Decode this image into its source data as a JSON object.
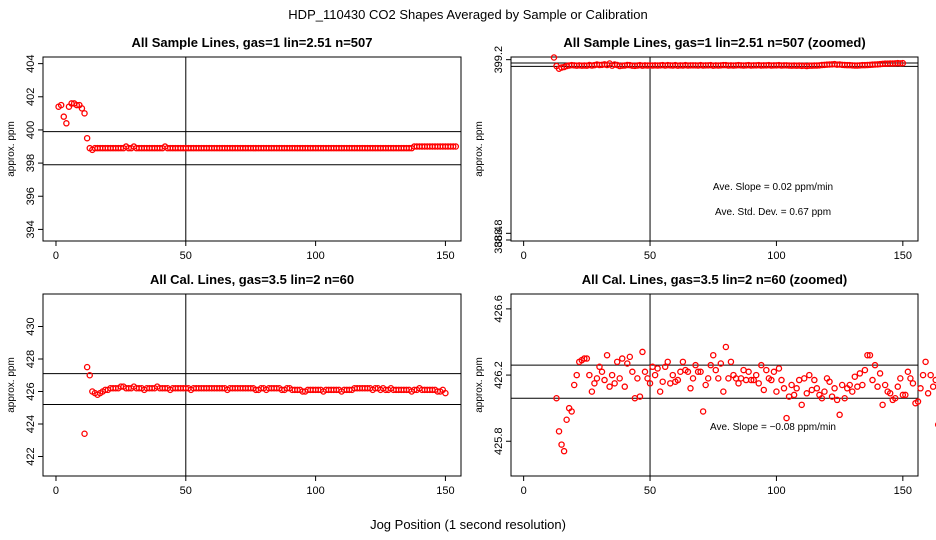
{
  "figure": {
    "title": "HDP_110430  CO2 Shapes Averaged by Sample or Calibration",
    "xlabel": "Jog Position (1 second resolution)"
  },
  "colors": {
    "points": "#ff0000",
    "axes": "#000000",
    "background": "#ffffff"
  },
  "chart_data": [
    {
      "type": "scatter",
      "title": "All Sample Lines, gas=1 lin=2.51 n=507",
      "ylabel": "approx. ppm",
      "xlim": [
        -5,
        156
      ],
      "ylim": [
        393.3,
        404.4
      ],
      "xticks": [
        0,
        50,
        100,
        150
      ],
      "yticks": [
        394,
        396,
        398,
        400,
        402,
        404
      ],
      "vline": 50,
      "hlines": [
        399.9,
        397.9
      ],
      "annotations": [],
      "series": [
        {
          "x_start": 1,
          "values": [
            401.4,
            401.5,
            400.8,
            400.4,
            401.4,
            401.6,
            401.6,
            401.5,
            401.5,
            401.3,
            401.0,
            399.5,
            398.9,
            398.8,
            398.9,
            398.9,
            398.9,
            398.9,
            398.9,
            398.9,
            398.9,
            398.9,
            398.9,
            398.9,
            398.9,
            398.9,
            399.0,
            398.9,
            398.9,
            399.0,
            398.9,
            398.9,
            398.9,
            398.9,
            398.9,
            398.9,
            398.9,
            398.9,
            398.9,
            398.9,
            398.9,
            399.0,
            398.9,
            398.9,
            398.9,
            398.9,
            398.9,
            398.9,
            398.9,
            398.9,
            398.9,
            398.9,
            398.9,
            398.9,
            398.9,
            398.9,
            398.9,
            398.9,
            398.9,
            398.9,
            398.9,
            398.9,
            398.9,
            398.9,
            398.9,
            398.9,
            398.9,
            398.9,
            398.9,
            398.9,
            398.9,
            398.9,
            398.9,
            398.9,
            398.9,
            398.9,
            398.9,
            398.9,
            398.9,
            398.9,
            398.9,
            398.9,
            398.9,
            398.9,
            398.9,
            398.9,
            398.9,
            398.9,
            398.9,
            398.9,
            398.9,
            398.9,
            398.9,
            398.9,
            398.9,
            398.9,
            398.9,
            398.9,
            398.9,
            398.9,
            398.9,
            398.9,
            398.9,
            398.9,
            398.9,
            398.9,
            398.9,
            398.9,
            398.9,
            398.9,
            398.9,
            398.9,
            398.9,
            398.9,
            398.9,
            398.9,
            398.9,
            398.9,
            398.9,
            398.9,
            398.9,
            398.9,
            398.9,
            398.9,
            398.9,
            398.9,
            398.9,
            398.9,
            398.9,
            398.9,
            398.9,
            398.9,
            398.9,
            398.9,
            398.9,
            398.9,
            398.9,
            399.0,
            399.0,
            399.0,
            399.0,
            399.0,
            399.0,
            399.0,
            399.0,
            399.0,
            399.0,
            399.0,
            399.0,
            399.0,
            399.0,
            399.0,
            399.0,
            399.0
          ]
        }
      ]
    },
    {
      "type": "scatter",
      "title": "All Sample Lines, gas=1 lin=2.51 n=507 (zoomed)",
      "ylabel": "approx. ppm",
      "xlim": [
        -5,
        156
      ],
      "ylim": [
        388.34,
        399.36
      ],
      "xticks": [
        0,
        50,
        100,
        150
      ],
      "yticks": [
        388.4,
        388.8,
        399.2
      ],
      "ytick_labels": [
        "388.4",
        "388.8",
        "399.2"
      ],
      "vline": 50,
      "hlines": [
        399.0,
        398.8
      ],
      "annotations": [
        "Ave. Slope =  0.02  ppm/min",
        "Ave. Std. Dev. =  0.67  ppm"
      ],
      "series": [
        {
          "x_start": 12,
          "values": [
            399.33,
            398.82,
            398.66,
            398.73,
            398.76,
            398.82,
            398.85,
            398.87,
            398.86,
            398.84,
            398.86,
            398.84,
            398.85,
            398.84,
            398.88,
            398.85,
            398.87,
            398.91,
            398.88,
            398.89,
            398.92,
            398.88,
            398.97,
            398.84,
            398.91,
            398.88,
            398.82,
            398.84,
            398.85,
            398.88,
            398.87,
            398.84,
            398.83,
            398.85,
            398.87,
            398.84,
            398.86,
            398.85,
            398.86,
            398.85,
            398.86,
            398.85,
            398.86,
            398.87,
            398.85,
            398.87,
            398.86,
            398.85,
            398.87,
            398.84,
            398.86,
            398.85,
            398.87,
            398.85,
            398.86,
            398.86,
            398.86,
            398.85,
            398.87,
            398.85,
            398.86,
            398.86,
            398.87,
            398.84,
            398.86,
            398.85,
            398.86,
            398.87,
            398.87,
            398.85,
            398.86,
            398.85,
            398.86,
            398.87,
            398.86,
            398.85,
            398.86,
            398.87,
            398.85,
            398.86,
            398.86,
            398.87,
            398.85,
            398.86,
            398.86,
            398.87,
            398.85,
            398.86,
            398.86,
            398.87,
            398.85,
            398.86,
            398.86,
            398.85,
            398.84,
            398.85,
            398.84,
            398.85,
            398.83,
            398.84,
            398.82,
            398.84,
            398.84,
            398.85,
            398.85,
            398.86,
            398.88,
            398.89,
            398.9,
            398.91,
            398.92,
            398.93,
            398.9,
            398.91,
            398.89,
            398.88,
            398.87,
            398.87,
            398.86,
            398.85,
            398.85,
            398.86,
            398.87,
            398.87,
            398.88,
            398.89,
            398.9,
            398.91,
            398.92,
            398.93,
            398.95,
            398.96,
            398.96,
            398.97,
            398.97,
            398.98,
            398.99,
            398.98,
            398.99
          ]
        }
      ]
    },
    {
      "type": "scatter",
      "title": "All Cal. Lines, gas=3.5 lin=2 n=60",
      "ylabel": "approx. ppm",
      "xlim": [
        -5,
        156
      ],
      "ylim": [
        420.8,
        432.0
      ],
      "xticks": [
        0,
        50,
        100,
        150
      ],
      "yticks": [
        422,
        424,
        426,
        428,
        430
      ],
      "vline": 50,
      "hlines": [
        427.1,
        425.2
      ],
      "annotations": [],
      "series": [
        {
          "x_start": 11,
          "values": [
            423.4,
            427.5,
            427.0,
            426.0,
            425.9,
            425.8,
            425.9,
            426.0,
            426.1,
            426.1,
            426.2,
            426.2,
            426.2,
            426.2,
            426.3,
            426.3,
            426.2,
            426.2,
            426.2,
            426.3,
            426.2,
            426.2,
            426.2,
            426.1,
            426.2,
            426.2,
            426.2,
            426.2,
            426.3,
            426.2,
            426.2,
            426.2,
            426.2,
            426.1,
            426.2,
            426.2,
            426.2,
            426.2,
            426.2,
            426.2,
            426.2,
            426.1,
            426.2,
            426.2,
            426.2,
            426.2,
            426.2,
            426.2,
            426.2,
            426.2,
            426.2,
            426.2,
            426.2,
            426.2,
            426.2,
            426.1,
            426.2,
            426.2,
            426.2,
            426.2,
            426.2,
            426.2,
            426.2,
            426.2,
            426.2,
            426.2,
            426.1,
            426.1,
            426.2,
            426.2,
            426.1,
            426.2,
            426.2,
            426.2,
            426.2,
            426.2,
            426.1,
            426.1,
            426.2,
            426.2,
            426.1,
            426.1,
            426.1,
            426.1,
            426.0,
            426.0,
            426.1,
            426.1,
            426.1,
            426.1,
            426.1,
            426.1,
            426.0,
            426.1,
            426.1,
            426.1,
            426.1,
            426.1,
            426.1,
            426.0,
            426.1,
            426.1,
            426.1,
            426.1,
            426.2,
            426.2,
            426.2,
            426.2,
            426.2,
            426.2,
            426.2,
            426.1,
            426.2,
            426.2,
            426.1,
            426.2,
            426.1,
            426.1,
            426.2,
            426.1,
            426.1,
            426.1,
            426.1,
            426.1,
            426.1,
            426.1,
            426.0,
            426.1,
            426.1,
            426.2,
            426.1,
            426.1,
            426.1,
            426.1,
            426.1,
            426.1,
            426.0,
            426.0,
            426.1,
            425.9
          ]
        }
      ]
    },
    {
      "type": "scatter",
      "title": "All Cal. Lines, gas=3.5 lin=2 n=60 (zoomed)",
      "ylabel": "approx. ppm",
      "xlim": [
        -5,
        156
      ],
      "ylim": [
        425.59,
        426.69
      ],
      "xticks": [
        0,
        50,
        100,
        150
      ],
      "yticks": [
        425.8,
        426.2,
        426.6
      ],
      "ytick_labels": [
        "425.8",
        "426.2",
        "426.6"
      ],
      "vline": 50,
      "hlines": [
        426.26,
        426.06
      ],
      "annotations": [
        "Ave. Slope = −0.08  ppm/min"
      ],
      "series": [
        {
          "x_start": 13,
          "values": [
            426.06,
            425.86,
            425.78,
            425.74,
            425.93,
            426.0,
            425.98,
            426.14,
            426.2,
            426.28,
            426.29,
            426.3,
            426.3,
            426.2,
            426.1,
            426.15,
            426.18,
            426.25,
            426.22,
            426.17,
            426.32,
            426.13,
            426.2,
            426.15,
            426.28,
            426.18,
            426.3,
            426.13,
            426.27,
            426.31,
            426.22,
            426.06,
            426.18,
            426.07,
            426.34,
            426.22,
            426.18,
            426.15,
            426.25,
            426.2,
            426.24,
            426.1,
            426.16,
            426.25,
            426.28,
            426.15,
            426.2,
            426.16,
            426.17,
            426.22,
            426.28,
            426.23,
            426.22,
            426.12,
            426.18,
            426.26,
            426.22,
            426.22,
            425.98,
            426.14,
            426.18,
            426.26,
            426.32,
            426.23,
            426.18,
            426.27,
            426.1,
            426.37,
            426.18,
            426.28,
            426.2,
            426.18,
            426.15,
            426.18,
            426.23,
            426.17,
            426.22,
            426.17,
            426.17,
            426.2,
            426.15,
            426.26,
            426.11,
            426.23,
            426.18,
            426.17,
            426.22,
            426.1,
            426.24,
            426.17,
            426.12,
            425.94,
            426.07,
            426.14,
            426.08,
            426.12,
            426.17,
            426.02,
            426.18,
            426.09,
            426.2,
            426.11,
            426.17,
            426.12,
            426.08,
            426.06,
            426.1,
            426.18,
            426.16,
            426.07,
            426.12,
            426.05,
            425.96,
            426.14,
            426.06,
            426.12,
            426.14,
            426.1,
            426.19,
            426.13,
            426.21,
            426.14,
            426.23,
            426.32,
            426.32,
            426.17,
            426.26,
            426.13,
            426.21,
            426.02,
            426.14,
            426.1,
            426.09,
            426.05,
            426.06,
            426.13,
            426.18,
            426.08,
            426.08,
            426.22,
            426.18,
            426.15,
            426.03,
            426.04,
            426.12,
            426.2,
            426.28,
            426.09,
            426.2,
            426.13,
            426.17,
            425.9
          ]
        }
      ]
    }
  ]
}
